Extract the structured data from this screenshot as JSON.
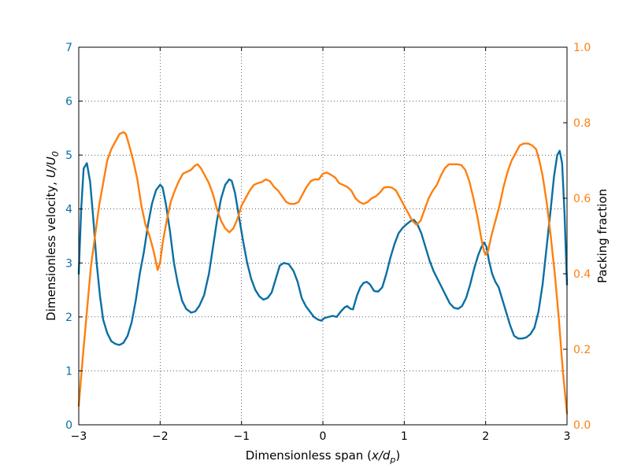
{
  "chart_data": {
    "type": "line",
    "title": "",
    "xlabel_text": "Dimensionless span (",
    "xlabel_math": "x/d",
    "xlabel_sub": "p",
    "xlabel_close": ")",
    "ylabel_left_text": "Dimensionless velocity, ",
    "ylabel_left_math": "U/U",
    "ylabel_left_sub": "0",
    "ylabel_right": "Packing fraction",
    "xlim": [
      -3,
      3
    ],
    "ylim_left": [
      0,
      7
    ],
    "ylim_right": [
      0,
      1
    ],
    "x_ticks": [
      "−3",
      "−2",
      "−1",
      "0",
      "1",
      "2",
      "3"
    ],
    "y_left_ticks": [
      "0",
      "1",
      "2",
      "3",
      "4",
      "5",
      "6",
      "7"
    ],
    "y_right_ticks": [
      "0.0",
      "0.2",
      "0.4",
      "0.6",
      "0.8",
      "1.0"
    ],
    "grid": true,
    "colors": {
      "velocity": "#0a6fa3",
      "packing": "#ff7f0e"
    },
    "series": [
      {
        "axis": "left",
        "points": [
          [
            -3.0,
            2.8
          ],
          [
            -2.97,
            4.0
          ],
          [
            -2.94,
            4.75
          ],
          [
            -2.9,
            4.85
          ],
          [
            -2.86,
            4.5
          ],
          [
            -2.82,
            3.8
          ],
          [
            -2.78,
            3.0
          ],
          [
            -2.74,
            2.4
          ],
          [
            -2.7,
            1.95
          ],
          [
            -2.65,
            1.7
          ],
          [
            -2.6,
            1.55
          ],
          [
            -2.55,
            1.5
          ],
          [
            -2.5,
            1.48
          ],
          [
            -2.45,
            1.52
          ],
          [
            -2.4,
            1.65
          ],
          [
            -2.35,
            1.9
          ],
          [
            -2.3,
            2.3
          ],
          [
            -2.25,
            2.8
          ],
          [
            -2.2,
            3.2
          ],
          [
            -2.15,
            3.7
          ],
          [
            -2.1,
            4.1
          ],
          [
            -2.05,
            4.35
          ],
          [
            -2.0,
            4.45
          ],
          [
            -1.97,
            4.4
          ],
          [
            -1.93,
            4.1
          ],
          [
            -1.88,
            3.6
          ],
          [
            -1.83,
            3.0
          ],
          [
            -1.78,
            2.6
          ],
          [
            -1.73,
            2.3
          ],
          [
            -1.68,
            2.15
          ],
          [
            -1.62,
            2.08
          ],
          [
            -1.57,
            2.1
          ],
          [
            -1.52,
            2.2
          ],
          [
            -1.46,
            2.4
          ],
          [
            -1.4,
            2.8
          ],
          [
            -1.35,
            3.3
          ],
          [
            -1.3,
            3.8
          ],
          [
            -1.25,
            4.2
          ],
          [
            -1.2,
            4.45
          ],
          [
            -1.15,
            4.55
          ],
          [
            -1.12,
            4.52
          ],
          [
            -1.08,
            4.3
          ],
          [
            -1.03,
            3.85
          ],
          [
            -0.98,
            3.4
          ],
          [
            -0.93,
            3.0
          ],
          [
            -0.88,
            2.7
          ],
          [
            -0.83,
            2.5
          ],
          [
            -0.78,
            2.38
          ],
          [
            -0.73,
            2.32
          ],
          [
            -0.68,
            2.35
          ],
          [
            -0.63,
            2.45
          ],
          [
            -0.58,
            2.7
          ],
          [
            -0.53,
            2.95
          ],
          [
            -0.48,
            3.0
          ],
          [
            -0.42,
            2.98
          ],
          [
            -0.36,
            2.85
          ],
          [
            -0.31,
            2.65
          ],
          [
            -0.26,
            2.35
          ],
          [
            -0.21,
            2.2
          ],
          [
            -0.16,
            2.1
          ],
          [
            -0.11,
            2.0
          ],
          [
            -0.06,
            1.95
          ],
          [
            -0.02,
            1.93
          ],
          [
            0.02,
            1.98
          ],
          [
            0.07,
            2.0
          ],
          [
            0.12,
            2.02
          ],
          [
            0.17,
            2.0
          ],
          [
            0.22,
            2.1
          ],
          [
            0.27,
            2.18
          ],
          [
            0.3,
            2.2
          ],
          [
            0.34,
            2.15
          ],
          [
            0.37,
            2.14
          ],
          [
            0.42,
            2.4
          ],
          [
            0.46,
            2.55
          ],
          [
            0.5,
            2.63
          ],
          [
            0.54,
            2.65
          ],
          [
            0.58,
            2.6
          ],
          [
            0.63,
            2.48
          ],
          [
            0.68,
            2.47
          ],
          [
            0.73,
            2.55
          ],
          [
            0.78,
            2.8
          ],
          [
            0.83,
            3.1
          ],
          [
            0.88,
            3.35
          ],
          [
            0.93,
            3.55
          ],
          [
            0.98,
            3.65
          ],
          [
            1.03,
            3.72
          ],
          [
            1.08,
            3.78
          ],
          [
            1.12,
            3.8
          ],
          [
            1.16,
            3.72
          ],
          [
            1.21,
            3.55
          ],
          [
            1.26,
            3.3
          ],
          [
            1.31,
            3.05
          ],
          [
            1.36,
            2.85
          ],
          [
            1.41,
            2.7
          ],
          [
            1.46,
            2.55
          ],
          [
            1.51,
            2.4
          ],
          [
            1.56,
            2.25
          ],
          [
            1.61,
            2.17
          ],
          [
            1.66,
            2.15
          ],
          [
            1.71,
            2.2
          ],
          [
            1.76,
            2.35
          ],
          [
            1.81,
            2.6
          ],
          [
            1.86,
            2.9
          ],
          [
            1.91,
            3.15
          ],
          [
            1.95,
            3.3
          ],
          [
            1.98,
            3.38
          ],
          [
            2.01,
            3.3
          ],
          [
            2.04,
            3.05
          ],
          [
            2.08,
            2.8
          ],
          [
            2.12,
            2.65
          ],
          [
            2.16,
            2.55
          ],
          [
            2.2,
            2.35
          ],
          [
            2.25,
            2.1
          ],
          [
            2.3,
            1.85
          ],
          [
            2.35,
            1.65
          ],
          [
            2.4,
            1.6
          ],
          [
            2.45,
            1.6
          ],
          [
            2.5,
            1.62
          ],
          [
            2.55,
            1.68
          ],
          [
            2.6,
            1.8
          ],
          [
            2.65,
            2.1
          ],
          [
            2.7,
            2.6
          ],
          [
            2.75,
            3.3
          ],
          [
            2.8,
            4.0
          ],
          [
            2.84,
            4.6
          ],
          [
            2.88,
            5.0
          ],
          [
            2.91,
            5.08
          ],
          [
            2.94,
            4.85
          ],
          [
            2.97,
            3.9
          ],
          [
            3.0,
            2.6
          ]
        ]
      },
      {
        "axis": "right",
        "points": [
          [
            -3.0,
            0.05
          ],
          [
            -2.95,
            0.18
          ],
          [
            -2.9,
            0.3
          ],
          [
            -2.85,
            0.42
          ],
          [
            -2.8,
            0.5
          ],
          [
            -2.75,
            0.58
          ],
          [
            -2.7,
            0.64
          ],
          [
            -2.65,
            0.7
          ],
          [
            -2.6,
            0.73
          ],
          [
            -2.55,
            0.75
          ],
          [
            -2.5,
            0.77
          ],
          [
            -2.45,
            0.775
          ],
          [
            -2.42,
            0.77
          ],
          [
            -2.38,
            0.74
          ],
          [
            -2.33,
            0.7
          ],
          [
            -2.28,
            0.65
          ],
          [
            -2.23,
            0.58
          ],
          [
            -2.18,
            0.53
          ],
          [
            -2.13,
            0.5
          ],
          [
            -2.08,
            0.46
          ],
          [
            -2.03,
            0.41
          ],
          [
            -2.0,
            0.43
          ],
          [
            -1.97,
            0.48
          ],
          [
            -1.92,
            0.54
          ],
          [
            -1.87,
            0.59
          ],
          [
            -1.82,
            0.62
          ],
          [
            -1.77,
            0.645
          ],
          [
            -1.72,
            0.665
          ],
          [
            -1.67,
            0.67
          ],
          [
            -1.62,
            0.675
          ],
          [
            -1.58,
            0.685
          ],
          [
            -1.54,
            0.69
          ],
          [
            -1.5,
            0.68
          ],
          [
            -1.45,
            0.66
          ],
          [
            -1.4,
            0.64
          ],
          [
            -1.35,
            0.61
          ],
          [
            -1.3,
            0.57
          ],
          [
            -1.25,
            0.54
          ],
          [
            -1.2,
            0.52
          ],
          [
            -1.15,
            0.51
          ],
          [
            -1.1,
            0.52
          ],
          [
            -1.05,
            0.545
          ],
          [
            -1.0,
            0.58
          ],
          [
            -0.95,
            0.6
          ],
          [
            -0.9,
            0.62
          ],
          [
            -0.85,
            0.635
          ],
          [
            -0.8,
            0.64
          ],
          [
            -0.75,
            0.643
          ],
          [
            -0.7,
            0.65
          ],
          [
            -0.65,
            0.645
          ],
          [
            -0.6,
            0.63
          ],
          [
            -0.55,
            0.62
          ],
          [
            -0.5,
            0.605
          ],
          [
            -0.45,
            0.59
          ],
          [
            -0.4,
            0.585
          ],
          [
            -0.35,
            0.585
          ],
          [
            -0.3,
            0.59
          ],
          [
            -0.25,
            0.61
          ],
          [
            -0.2,
            0.63
          ],
          [
            -0.15,
            0.645
          ],
          [
            -0.1,
            0.65
          ],
          [
            -0.05,
            0.65
          ],
          [
            0.0,
            0.665
          ],
          [
            0.05,
            0.668
          ],
          [
            0.1,
            0.662
          ],
          [
            0.15,
            0.655
          ],
          [
            0.2,
            0.64
          ],
          [
            0.25,
            0.635
          ],
          [
            0.3,
            0.63
          ],
          [
            0.35,
            0.62
          ],
          [
            0.4,
            0.6
          ],
          [
            0.45,
            0.59
          ],
          [
            0.5,
            0.585
          ],
          [
            0.55,
            0.59
          ],
          [
            0.6,
            0.6
          ],
          [
            0.65,
            0.605
          ],
          [
            0.7,
            0.615
          ],
          [
            0.75,
            0.628
          ],
          [
            0.8,
            0.63
          ],
          [
            0.85,
            0.628
          ],
          [
            0.9,
            0.62
          ],
          [
            0.95,
            0.6
          ],
          [
            1.0,
            0.58
          ],
          [
            1.05,
            0.56
          ],
          [
            1.1,
            0.54
          ],
          [
            1.15,
            0.53
          ],
          [
            1.2,
            0.54
          ],
          [
            1.25,
            0.57
          ],
          [
            1.3,
            0.6
          ],
          [
            1.35,
            0.62
          ],
          [
            1.4,
            0.635
          ],
          [
            1.45,
            0.66
          ],
          [
            1.5,
            0.68
          ],
          [
            1.55,
            0.69
          ],
          [
            1.6,
            0.69
          ],
          [
            1.65,
            0.69
          ],
          [
            1.7,
            0.688
          ],
          [
            1.75,
            0.675
          ],
          [
            1.8,
            0.645
          ],
          [
            1.85,
            0.6
          ],
          [
            1.9,
            0.55
          ],
          [
            1.95,
            0.49
          ],
          [
            1.98,
            0.46
          ],
          [
            2.0,
            0.45
          ],
          [
            2.03,
            0.46
          ],
          [
            2.07,
            0.5
          ],
          [
            2.12,
            0.54
          ],
          [
            2.17,
            0.58
          ],
          [
            2.22,
            0.63
          ],
          [
            2.27,
            0.67
          ],
          [
            2.32,
            0.7
          ],
          [
            2.37,
            0.72
          ],
          [
            2.42,
            0.74
          ],
          [
            2.47,
            0.745
          ],
          [
            2.52,
            0.745
          ],
          [
            2.57,
            0.74
          ],
          [
            2.62,
            0.73
          ],
          [
            2.66,
            0.7
          ],
          [
            2.7,
            0.66
          ],
          [
            2.75,
            0.59
          ],
          [
            2.8,
            0.5
          ],
          [
            2.85,
            0.4
          ],
          [
            2.9,
            0.28
          ],
          [
            2.95,
            0.14
          ],
          [
            3.0,
            0.03
          ]
        ]
      }
    ]
  }
}
